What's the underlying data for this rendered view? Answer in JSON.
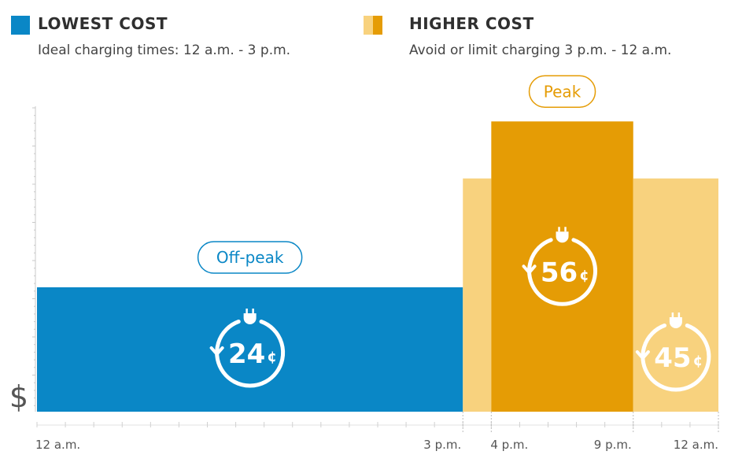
{
  "legend": {
    "low": {
      "title": "LOWEST COST",
      "subtitle": "Ideal charging times: 12 a.m. - 3 p.m.",
      "color": "#0a87c6"
    },
    "high": {
      "title": "HIGHER COST",
      "subtitle": "Avoid or limit charging 3 p.m. - 12 a.m.",
      "color": "#e59c05",
      "light_color": "#f8d27e"
    }
  },
  "chart_data": {
    "type": "bar",
    "title": "",
    "xlabel": "",
    "ylabel": "$",
    "ylim": [
      0,
      65
    ],
    "x_ticks": [
      "12 a.m.",
      "3 p.m.",
      "4 p.m.",
      "9 p.m.",
      "12 a.m."
    ],
    "series": [
      {
        "name": "Off-peak",
        "label": "Off-peak",
        "start_hour": 0,
        "end_hour": 15,
        "value": 24,
        "value_label": "24",
        "unit": "¢",
        "color": "#0a87c6"
      },
      {
        "name": "",
        "start_hour": 15,
        "end_hour": 16,
        "value": 45,
        "color": "#f8d27e"
      },
      {
        "name": "Peak",
        "label": "Peak",
        "start_hour": 16,
        "end_hour": 21,
        "value": 56,
        "value_label": "56",
        "unit": "¢",
        "color": "#e59c05"
      },
      {
        "name": "",
        "start_hour": 21,
        "end_hour": 24,
        "value": 45,
        "value_label": "45",
        "unit": "¢",
        "color": "#f8d27e"
      }
    ]
  }
}
